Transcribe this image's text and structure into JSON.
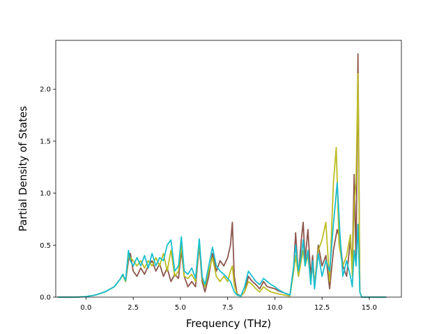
{
  "chart_data": {
    "type": "line",
    "title": "",
    "xlabel": "Frequency (THz)",
    "ylabel": "Partial Density of States",
    "xlim": [
      -1.6,
      16.7
    ],
    "ylim": [
      0.0,
      2.47
    ],
    "xticks": [
      0.0,
      2.5,
      5.0,
      7.5,
      10.0,
      12.5,
      15.0
    ],
    "xtick_labels": [
      "0.0",
      "2.5",
      "5.0",
      "7.5",
      "10.0",
      "12.5",
      "15.0"
    ],
    "yticks": [
      0.0,
      0.5,
      1.0,
      1.5,
      2.0
    ],
    "ytick_labels": [
      "0.0",
      "0.5",
      "1.0",
      "1.5",
      "2.0"
    ],
    "grid": false,
    "legend": "none",
    "series": [
      {
        "color": "#8c564b",
        "points": [
          [
            -1.5,
            0
          ],
          [
            -0.5,
            0
          ],
          [
            0,
            0.005
          ],
          [
            0.5,
            0.02
          ],
          [
            1.0,
            0.05
          ],
          [
            1.5,
            0.1
          ],
          [
            1.8,
            0.17
          ],
          [
            1.95,
            0.22
          ],
          [
            2.1,
            0.15
          ],
          [
            2.25,
            0.35
          ],
          [
            2.35,
            0.42
          ],
          [
            2.5,
            0.25
          ],
          [
            2.7,
            0.2
          ],
          [
            2.9,
            0.28
          ],
          [
            3.1,
            0.22
          ],
          [
            3.3,
            0.3
          ],
          [
            3.5,
            0.35
          ],
          [
            3.7,
            0.25
          ],
          [
            3.9,
            0.32
          ],
          [
            4.1,
            0.2
          ],
          [
            4.3,
            0.28
          ],
          [
            4.5,
            0.15
          ],
          [
            4.7,
            0.22
          ],
          [
            4.9,
            0.18
          ],
          [
            5.05,
            0.45
          ],
          [
            5.2,
            0.2
          ],
          [
            5.4,
            0.1
          ],
          [
            5.6,
            0.15
          ],
          [
            5.8,
            0.1
          ],
          [
            6.0,
            0.5
          ],
          [
            6.15,
            0.15
          ],
          [
            6.3,
            0.05
          ],
          [
            6.5,
            0.2
          ],
          [
            6.7,
            0.42
          ],
          [
            6.9,
            0.25
          ],
          [
            7.1,
            0.35
          ],
          [
            7.3,
            0.3
          ],
          [
            7.5,
            0.38
          ],
          [
            7.65,
            0.5
          ],
          [
            7.75,
            0.72
          ],
          [
            7.85,
            0.2
          ],
          [
            8.0,
            0.03
          ],
          [
            8.2,
            0.01
          ],
          [
            8.4,
            0.05
          ],
          [
            8.6,
            0.2
          ],
          [
            8.8,
            0.15
          ],
          [
            9.0,
            0.12
          ],
          [
            9.2,
            0.08
          ],
          [
            9.4,
            0.15
          ],
          [
            9.6,
            0.1
          ],
          [
            9.8,
            0.09
          ],
          [
            10.0,
            0.08
          ],
          [
            10.2,
            0.06
          ],
          [
            10.5,
            0.04
          ],
          [
            10.8,
            0.02
          ],
          [
            11.0,
            0.3
          ],
          [
            11.1,
            0.62
          ],
          [
            11.25,
            0.2
          ],
          [
            11.4,
            0.55
          ],
          [
            11.5,
            0.72
          ],
          [
            11.6,
            0.35
          ],
          [
            11.75,
            0.65
          ],
          [
            11.9,
            0.2
          ],
          [
            12.0,
            0.4
          ],
          [
            12.1,
            0.1
          ],
          [
            12.3,
            0.5
          ],
          [
            12.5,
            0.3
          ],
          [
            12.7,
            0.4
          ],
          [
            12.9,
            0.08
          ],
          [
            13.1,
            0.45
          ],
          [
            13.3,
            0.65
          ],
          [
            13.45,
            0.55
          ],
          [
            13.6,
            0.3
          ],
          [
            13.8,
            0.2
          ],
          [
            14.0,
            0.55
          ],
          [
            14.1,
            0.3
          ],
          [
            14.2,
            1.18
          ],
          [
            14.3,
            0.35
          ],
          [
            14.4,
            2.34
          ],
          [
            14.5,
            0.05
          ],
          [
            14.6,
            0
          ],
          [
            15.9,
            0
          ]
        ]
      },
      {
        "color": "#bcbd22",
        "points": [
          [
            -1.5,
            0
          ],
          [
            -0.5,
            0
          ],
          [
            0,
            0.005
          ],
          [
            0.5,
            0.02
          ],
          [
            1.0,
            0.05
          ],
          [
            1.5,
            0.1
          ],
          [
            1.8,
            0.17
          ],
          [
            1.95,
            0.21
          ],
          [
            2.1,
            0.15
          ],
          [
            2.25,
            0.4
          ],
          [
            2.35,
            0.38
          ],
          [
            2.5,
            0.35
          ],
          [
            2.7,
            0.3
          ],
          [
            2.9,
            0.35
          ],
          [
            3.1,
            0.28
          ],
          [
            3.3,
            0.35
          ],
          [
            3.5,
            0.3
          ],
          [
            3.7,
            0.38
          ],
          [
            3.9,
            0.3
          ],
          [
            4.1,
            0.42
          ],
          [
            4.3,
            0.25
          ],
          [
            4.5,
            0.45
          ],
          [
            4.7,
            0.2
          ],
          [
            4.9,
            0.25
          ],
          [
            5.05,
            0.5
          ],
          [
            5.2,
            0.2
          ],
          [
            5.4,
            0.18
          ],
          [
            5.6,
            0.22
          ],
          [
            5.8,
            0.15
          ],
          [
            6.0,
            0.52
          ],
          [
            6.15,
            0.18
          ],
          [
            6.3,
            0.1
          ],
          [
            6.5,
            0.25
          ],
          [
            6.7,
            0.38
          ],
          [
            6.9,
            0.2
          ],
          [
            7.1,
            0.15
          ],
          [
            7.3,
            0.2
          ],
          [
            7.5,
            0.15
          ],
          [
            7.65,
            0.25
          ],
          [
            7.75,
            0.3
          ],
          [
            7.85,
            0.12
          ],
          [
            8.0,
            0.02
          ],
          [
            8.2,
            0.01
          ],
          [
            8.4,
            0.05
          ],
          [
            8.6,
            0.15
          ],
          [
            8.8,
            0.12
          ],
          [
            9.0,
            0.08
          ],
          [
            9.2,
            0.05
          ],
          [
            9.4,
            0.1
          ],
          [
            9.6,
            0.07
          ],
          [
            9.8,
            0.05
          ],
          [
            10.0,
            0.04
          ],
          [
            10.2,
            0.03
          ],
          [
            10.5,
            0.02
          ],
          [
            10.8,
            0.01
          ],
          [
            11.0,
            0.25
          ],
          [
            11.1,
            0.4
          ],
          [
            11.25,
            0.2
          ],
          [
            11.4,
            0.35
          ],
          [
            11.5,
            0.45
          ],
          [
            11.6,
            0.3
          ],
          [
            11.75,
            0.4
          ],
          [
            11.9,
            0.15
          ],
          [
            12.0,
            0.3
          ],
          [
            12.1,
            0.12
          ],
          [
            12.3,
            0.45
          ],
          [
            12.5,
            0.55
          ],
          [
            12.7,
            0.72
          ],
          [
            12.9,
            0.15
          ],
          [
            13.1,
            1.1
          ],
          [
            13.25,
            1.44
          ],
          [
            13.4,
            0.5
          ],
          [
            13.6,
            0.3
          ],
          [
            13.8,
            0.4
          ],
          [
            14.0,
            0.6
          ],
          [
            14.1,
            0.2
          ],
          [
            14.2,
            0.9
          ],
          [
            14.3,
            1.1
          ],
          [
            14.4,
            2.15
          ],
          [
            14.5,
            0.05
          ],
          [
            14.6,
            0
          ],
          [
            15.9,
            0
          ]
        ]
      },
      {
        "color": "#17becf",
        "points": [
          [
            -1.5,
            0
          ],
          [
            -0.5,
            0
          ],
          [
            0,
            0.005
          ],
          [
            0.5,
            0.02
          ],
          [
            1.0,
            0.05
          ],
          [
            1.5,
            0.1
          ],
          [
            1.8,
            0.17
          ],
          [
            1.95,
            0.22
          ],
          [
            2.1,
            0.16
          ],
          [
            2.25,
            0.45
          ],
          [
            2.35,
            0.35
          ],
          [
            2.5,
            0.3
          ],
          [
            2.7,
            0.38
          ],
          [
            2.9,
            0.3
          ],
          [
            3.1,
            0.4
          ],
          [
            3.3,
            0.28
          ],
          [
            3.5,
            0.42
          ],
          [
            3.7,
            0.3
          ],
          [
            3.9,
            0.38
          ],
          [
            4.1,
            0.35
          ],
          [
            4.3,
            0.5
          ],
          [
            4.5,
            0.55
          ],
          [
            4.7,
            0.25
          ],
          [
            4.9,
            0.3
          ],
          [
            5.05,
            0.58
          ],
          [
            5.2,
            0.25
          ],
          [
            5.4,
            0.22
          ],
          [
            5.6,
            0.28
          ],
          [
            5.8,
            0.18
          ],
          [
            6.0,
            0.56
          ],
          [
            6.15,
            0.2
          ],
          [
            6.3,
            0.12
          ],
          [
            6.5,
            0.3
          ],
          [
            6.7,
            0.48
          ],
          [
            6.9,
            0.3
          ],
          [
            7.1,
            0.25
          ],
          [
            7.3,
            0.22
          ],
          [
            7.5,
            0.18
          ],
          [
            7.65,
            0.15
          ],
          [
            7.75,
            0.1
          ],
          [
            7.85,
            0.05
          ],
          [
            8.0,
            0.02
          ],
          [
            8.2,
            0.01
          ],
          [
            8.4,
            0.1
          ],
          [
            8.6,
            0.25
          ],
          [
            8.8,
            0.2
          ],
          [
            9.0,
            0.15
          ],
          [
            9.2,
            0.12
          ],
          [
            9.4,
            0.18
          ],
          [
            9.6,
            0.15
          ],
          [
            9.8,
            0.12
          ],
          [
            10.0,
            0.1
          ],
          [
            10.2,
            0.07
          ],
          [
            10.5,
            0.04
          ],
          [
            10.8,
            0.02
          ],
          [
            11.0,
            0.3
          ],
          [
            11.1,
            0.5
          ],
          [
            11.25,
            0.25
          ],
          [
            11.4,
            0.4
          ],
          [
            11.5,
            0.55
          ],
          [
            11.6,
            0.3
          ],
          [
            11.75,
            0.45
          ],
          [
            11.9,
            0.12
          ],
          [
            12.0,
            0.35
          ],
          [
            12.1,
            0.08
          ],
          [
            12.3,
            0.42
          ],
          [
            12.5,
            0.2
          ],
          [
            12.7,
            0.35
          ],
          [
            12.9,
            0.25
          ],
          [
            13.1,
            0.7
          ],
          [
            13.3,
            1.1
          ],
          [
            13.45,
            0.6
          ],
          [
            13.6,
            0.2
          ],
          [
            13.8,
            0.35
          ],
          [
            14.0,
            0.2
          ],
          [
            14.1,
            0.1
          ],
          [
            14.2,
            0.45
          ],
          [
            14.3,
            0.3
          ],
          [
            14.4,
            0.7
          ],
          [
            14.5,
            0.05
          ],
          [
            14.6,
            0
          ],
          [
            15.9,
            0
          ]
        ]
      }
    ]
  }
}
